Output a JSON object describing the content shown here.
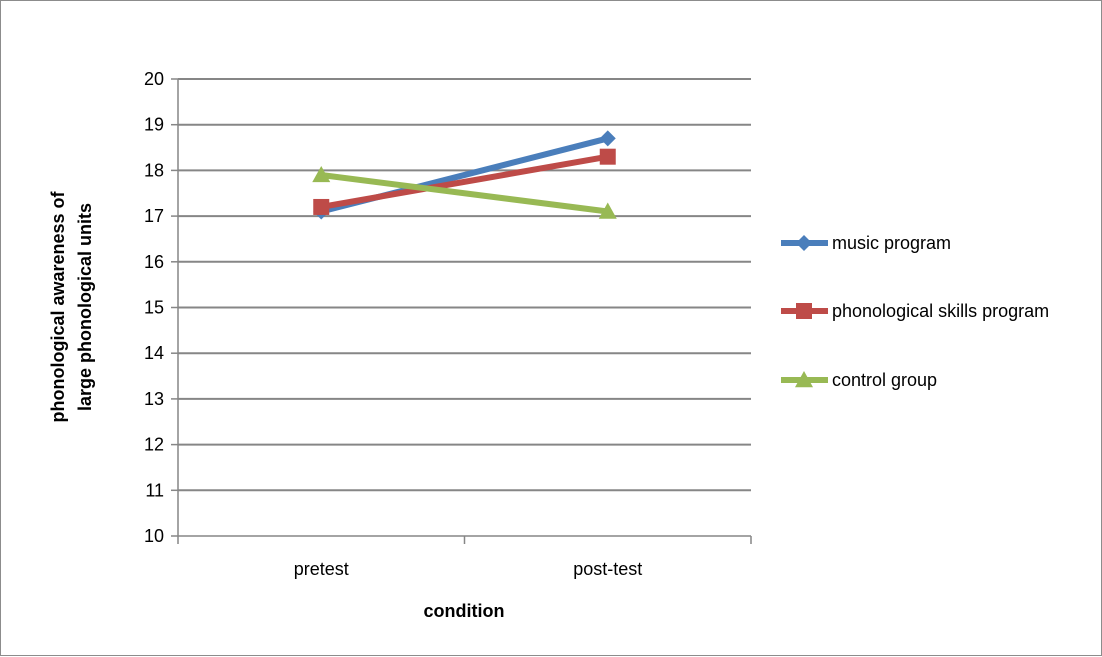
{
  "chart_data": {
    "type": "line",
    "categories": [
      "pretest",
      "post-test"
    ],
    "series": [
      {
        "name": "music program",
        "values": [
          17.1,
          18.7
        ],
        "color": "#4a7ebb",
        "marker": "diamond"
      },
      {
        "name": "phonological skills program",
        "values": [
          17.2,
          18.3
        ],
        "color": "#be4b48",
        "marker": "square"
      },
      {
        "name": "control group",
        "values": [
          17.9,
          17.1
        ],
        "color": "#98b954",
        "marker": "triangle"
      }
    ],
    "title": "",
    "xlabel": "condition",
    "ylabel_lines": [
      "phonological awareness of",
      "large phonological units"
    ],
    "ylim": [
      10,
      20
    ],
    "yticks": [
      10,
      11,
      12,
      13,
      14,
      15,
      16,
      17,
      18,
      19,
      20
    ],
    "grid": true,
    "legend_position": "right"
  }
}
